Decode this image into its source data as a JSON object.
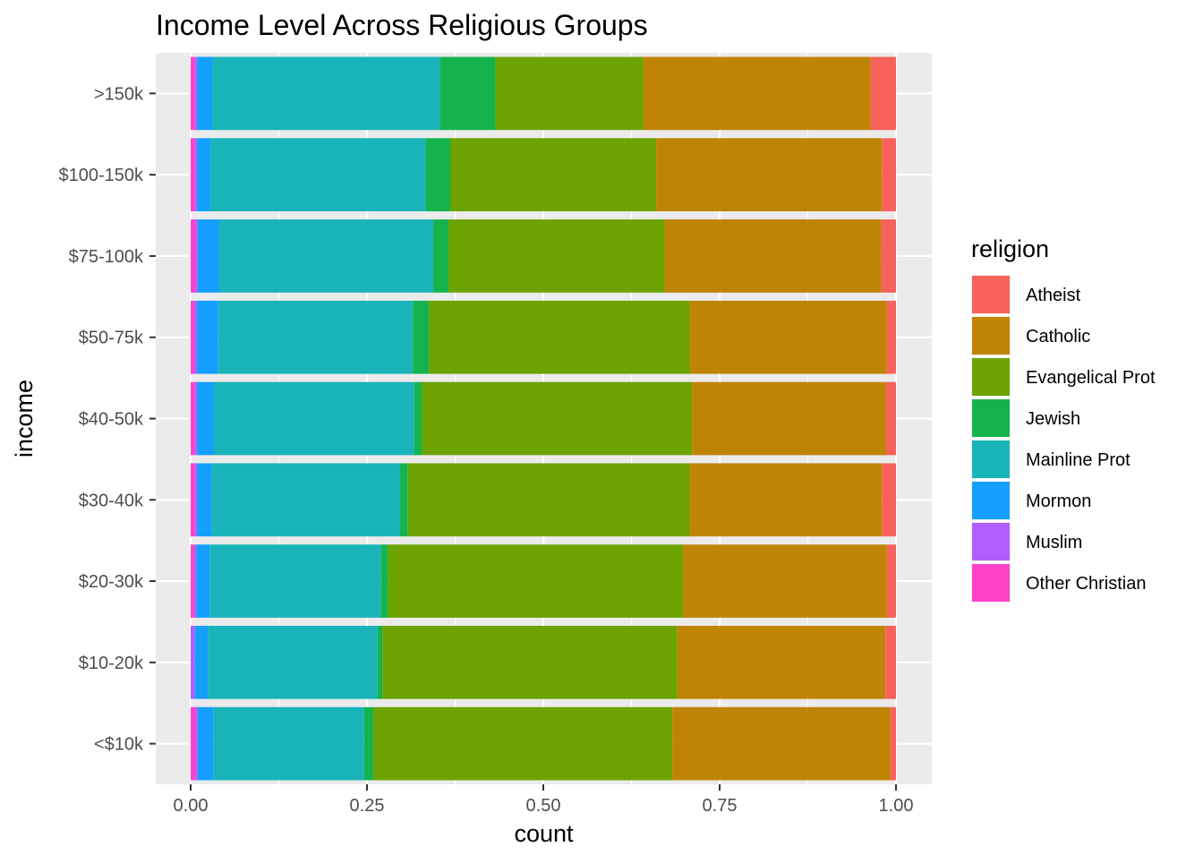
{
  "chart_data": {
    "type": "bar",
    "orientation": "horizontal",
    "stacking": "fill",
    "title": "Income Level Across Religious Groups",
    "xlabel": "count",
    "ylabel": "income",
    "xlim": [
      0,
      1
    ],
    "x_ticks": [
      "0.00",
      "0.25",
      "0.50",
      "0.75",
      "1.00"
    ],
    "grid": true,
    "legend_position": "right",
    "legend_title": "religion",
    "categories": [
      "<$10k",
      "$10-20k",
      "$20-30k",
      "$30-40k",
      "$40-50k",
      "$50-75k",
      "$75-100k",
      "$100-150k",
      ">150k"
    ],
    "series": [
      {
        "name": "Other Christian",
        "color": "#FF41C8",
        "values": [
          0.007,
          0.0,
          0.005,
          0.006,
          0.006,
          0.005,
          0.007,
          0.006,
          0.006
        ]
      },
      {
        "name": "Muslim",
        "color": "#B15EFF",
        "values": [
          0.003,
          0.006,
          0.003,
          0.003,
          0.003,
          0.004,
          0.003,
          0.003,
          0.003
        ]
      },
      {
        "name": "Mormon",
        "color": "#149FFF",
        "values": [
          0.022,
          0.019,
          0.019,
          0.021,
          0.024,
          0.03,
          0.03,
          0.019,
          0.022
        ]
      },
      {
        "name": "Mainline Prot",
        "color": "#19B4B9",
        "values": [
          0.214,
          0.24,
          0.243,
          0.267,
          0.284,
          0.276,
          0.304,
          0.305,
          0.323
        ]
      },
      {
        "name": "Jewish",
        "color": "#15B34E",
        "values": [
          0.013,
          0.007,
          0.01,
          0.011,
          0.011,
          0.023,
          0.022,
          0.035,
          0.078
        ]
      },
      {
        "name": "Evangelical Prot",
        "color": "#6CA300",
        "values": [
          0.424,
          0.418,
          0.418,
          0.4,
          0.383,
          0.37,
          0.306,
          0.292,
          0.21
        ]
      },
      {
        "name": "Catholic",
        "color": "#C08404",
        "values": [
          0.309,
          0.295,
          0.289,
          0.272,
          0.275,
          0.279,
          0.307,
          0.32,
          0.322
        ]
      },
      {
        "name": "Atheist",
        "color": "#F7635C",
        "values": [
          0.008,
          0.015,
          0.013,
          0.02,
          0.014,
          0.013,
          0.021,
          0.02,
          0.036
        ]
      }
    ]
  }
}
